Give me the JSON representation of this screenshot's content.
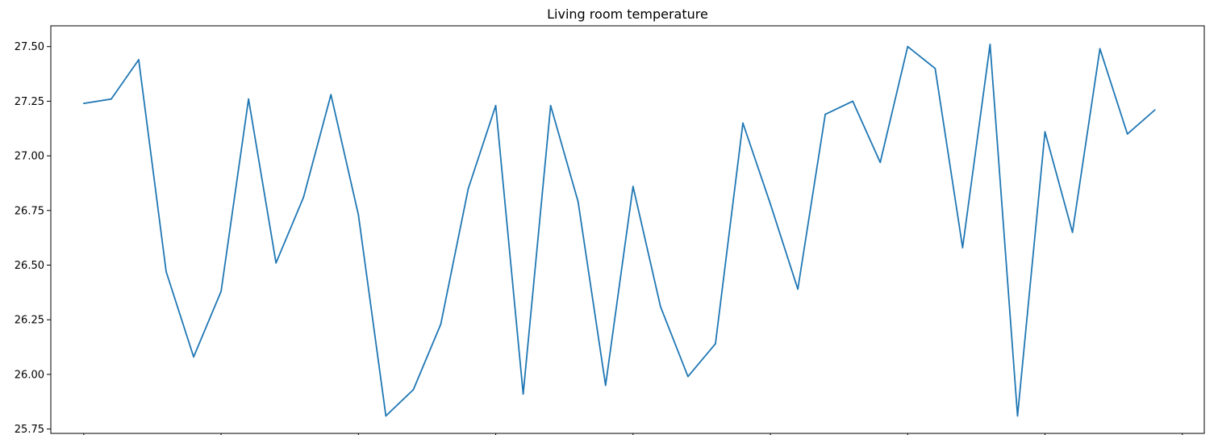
{
  "chart_data": {
    "type": "line",
    "title": "Living room temperature",
    "xlabel": "",
    "ylabel": "",
    "ylim": [
      25.73,
      27.595
    ],
    "yticks": [
      25.75,
      26.0,
      26.25,
      26.5,
      26.75,
      27.0,
      27.25,
      27.5
    ],
    "ytick_labels": [
      "25.75",
      "26.00",
      "26.25",
      "26.50",
      "26.75",
      "27.00",
      "27.25",
      "27.50"
    ],
    "xlim": [
      -1.2,
      40.8
    ],
    "xticks": [
      0,
      5,
      10,
      15,
      20,
      25,
      30,
      35,
      40
    ],
    "xtick_labels_visible": false,
    "grid": false,
    "legend": "none",
    "color": "#1f77b4",
    "series": [
      {
        "x": [
          0,
          1,
          2,
          3,
          4,
          5,
          6,
          7,
          8,
          9,
          10,
          11,
          12,
          13,
          14,
          15,
          16,
          17,
          18,
          19,
          20,
          21,
          22,
          23,
          24,
          25,
          26,
          27,
          28,
          29,
          30,
          31,
          32,
          33,
          34,
          35,
          36,
          37,
          38,
          39
        ],
        "values": [
          27.24,
          27.26,
          27.44,
          26.47,
          26.08,
          26.38,
          27.26,
          26.51,
          26.81,
          27.28,
          26.73,
          25.81,
          25.93,
          26.23,
          26.85,
          27.23,
          25.91,
          27.23,
          26.79,
          25.95,
          26.86,
          26.31,
          25.99,
          26.14,
          27.15,
          26.78,
          26.39,
          27.19,
          27.25,
          26.97,
          27.5,
          27.4,
          26.58,
          27.51,
          25.81,
          27.11,
          26.65,
          27.49,
          27.1,
          27.21
        ]
      }
    ]
  }
}
